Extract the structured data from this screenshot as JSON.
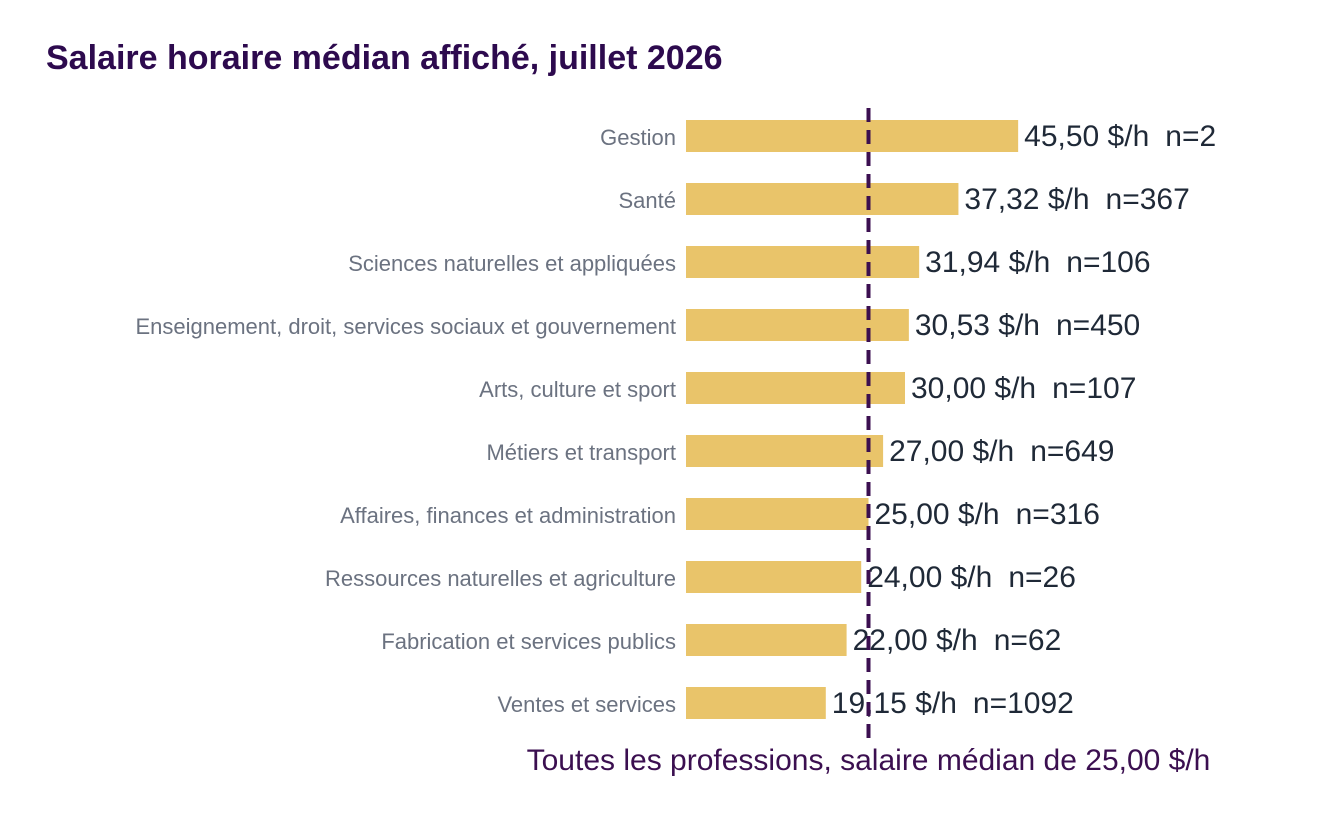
{
  "chart_data": {
    "type": "bar",
    "orientation": "horizontal",
    "title": "Salaire horaire médian affiché, juillet 2026",
    "categories": [
      "Gestion",
      "Santé",
      "Sciences naturelles et appliquées",
      "Enseignement, droit, services sociaux et gouvernement",
      "Arts, culture et sport",
      "Métiers et transport",
      "Affaires, finances et administration",
      "Ressources naturelles et agriculture",
      "Fabrication et services publics",
      "Ventes et services"
    ],
    "values": [
      45.5,
      37.32,
      31.94,
      30.53,
      30.0,
      27.0,
      25.0,
      24.0,
      22.0,
      19.15
    ],
    "value_labels": [
      "45,50 $/h",
      "37,32 $/h",
      "31,94 $/h",
      "30,53 $/h",
      "30,00 $/h",
      "27,00 $/h",
      "25,00 $/h",
      "24,00 $/h",
      "22,00 $/h",
      "19,15 $/h"
    ],
    "count_labels": [
      "n=2",
      "n=367",
      "n=106",
      "n=450",
      "n=107",
      "n=649",
      "n=316",
      "n=26",
      "n=62",
      "n=1092"
    ],
    "color": "#e9c46a",
    "xlim": [
      0,
      80
    ],
    "reference": {
      "value": 25,
      "label": "Toutes les professions, salaire médian de 25,00 $/h",
      "color": "#3b0f50"
    }
  }
}
